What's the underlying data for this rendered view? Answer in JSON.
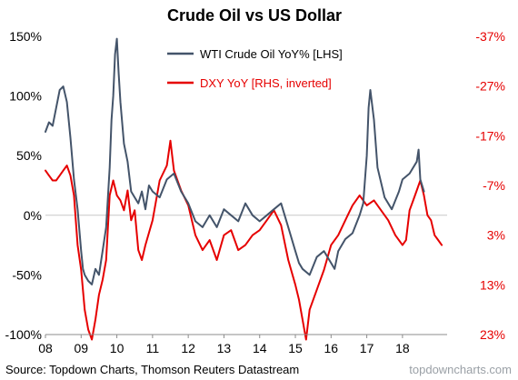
{
  "chart_data": {
    "type": "line",
    "title": "Crude Oil vs US Dollar",
    "x_tick_labels": [
      "08",
      "09",
      "10",
      "11",
      "12",
      "13",
      "14",
      "15",
      "16",
      "17",
      "18"
    ],
    "x_ticks_year": [
      2008,
      2009,
      2010,
      2011,
      2012,
      2013,
      2014,
      2015,
      2016,
      2017,
      2018
    ],
    "xlim": [
      2008.0,
      2019.25
    ],
    "y_left": {
      "ylim": [
        -100,
        150
      ],
      "tick_values": [
        150,
        100,
        50,
        0,
        -50,
        -100
      ],
      "tick_labels": [
        "150%",
        "100%",
        "50%",
        "0%",
        "-50%",
        "-100%"
      ]
    },
    "y_right": {
      "ylim": [
        -37,
        23
      ],
      "inverted": true,
      "tick_values": [
        -37,
        -27,
        -17,
        -7,
        3,
        13,
        23
      ],
      "tick_labels": [
        "-37%",
        "-27%",
        "-17%",
        "-7%",
        "3%",
        "13%",
        "23%"
      ]
    },
    "zero_line": true,
    "legend_position": "top-center",
    "series": [
      {
        "name": "WTI Crude Oil YoY% [LHS]",
        "axis": "left",
        "color": "#44546a",
        "x": [
          2008.0,
          2008.1,
          2008.2,
          2008.3,
          2008.4,
          2008.5,
          2008.6,
          2008.7,
          2008.8,
          2008.9,
          2009.0,
          2009.05,
          2009.1,
          2009.2,
          2009.3,
          2009.4,
          2009.5,
          2009.6,
          2009.7,
          2009.8,
          2009.85,
          2009.9,
          2009.95,
          2010.0,
          2010.05,
          2010.1,
          2010.2,
          2010.3,
          2010.4,
          2010.5,
          2010.6,
          2010.7,
          2010.8,
          2010.9,
          2011.0,
          2011.2,
          2011.4,
          2011.6,
          2011.8,
          2012.0,
          2012.2,
          2012.4,
          2012.6,
          2012.8,
          2013.0,
          2013.2,
          2013.4,
          2013.6,
          2013.8,
          2014.0,
          2014.2,
          2014.4,
          2014.6,
          2014.8,
          2015.0,
          2015.1,
          2015.2,
          2015.4,
          2015.6,
          2015.8,
          2016.0,
          2016.1,
          2016.2,
          2016.4,
          2016.6,
          2016.8,
          2016.9,
          2017.0,
          2017.05,
          2017.1,
          2017.2,
          2017.3,
          2017.5,
          2017.7,
          2017.9,
          2018.0,
          2018.2,
          2018.4,
          2018.45,
          2018.5,
          2018.6
        ],
        "values": [
          70,
          78,
          75,
          90,
          105,
          108,
          95,
          65,
          30,
          5,
          -30,
          -45,
          -50,
          -55,
          -58,
          -45,
          -50,
          -30,
          -10,
          40,
          80,
          100,
          135,
          148,
          120,
          95,
          60,
          45,
          20,
          15,
          10,
          20,
          5,
          25,
          20,
          15,
          30,
          35,
          20,
          10,
          -5,
          -10,
          0,
          -10,
          5,
          0,
          -5,
          10,
          0,
          -5,
          0,
          5,
          10,
          -10,
          -30,
          -40,
          -45,
          -50,
          -35,
          -30,
          -40,
          -45,
          -30,
          -20,
          -15,
          0,
          10,
          50,
          90,
          105,
          80,
          40,
          15,
          5,
          20,
          30,
          35,
          45,
          55,
          30,
          20
        ]
      },
      {
        "name": "DXY YoY [RHS, inverted]",
        "axis": "right",
        "color": "#e60000",
        "x": [
          2008.0,
          2008.1,
          2008.2,
          2008.3,
          2008.4,
          2008.5,
          2008.6,
          2008.7,
          2008.8,
          2008.9,
          2009.0,
          2009.1,
          2009.2,
          2009.3,
          2009.4,
          2009.5,
          2009.6,
          2009.7,
          2009.8,
          2009.9,
          2010.0,
          2010.1,
          2010.2,
          2010.3,
          2010.4,
          2010.5,
          2010.6,
          2010.7,
          2010.8,
          2011.0,
          2011.2,
          2011.4,
          2011.5,
          2011.6,
          2011.8,
          2012.0,
          2012.2,
          2012.4,
          2012.6,
          2012.8,
          2013.0,
          2013.2,
          2013.4,
          2013.6,
          2013.8,
          2014.0,
          2014.2,
          2014.4,
          2014.6,
          2014.8,
          2015.0,
          2015.1,
          2015.2,
          2015.3,
          2015.4,
          2015.6,
          2015.8,
          2016.0,
          2016.2,
          2016.4,
          2016.6,
          2016.8,
          2017.0,
          2017.2,
          2017.4,
          2017.6,
          2017.8,
          2018.0,
          2018.1,
          2018.2,
          2018.3,
          2018.4,
          2018.5,
          2018.6,
          2018.7,
          2018.8,
          2018.9,
          2019.0,
          2019.1
        ],
        "values": [
          -10,
          -9,
          -8,
          -8,
          -9,
          -10,
          -11,
          -9,
          -5,
          5,
          10,
          18,
          22,
          24,
          20,
          15,
          12,
          8,
          -5,
          -8,
          -5,
          -4,
          -2,
          -6,
          0,
          -2,
          6,
          8,
          5,
          0,
          -8,
          -11,
          -16,
          -10,
          -6,
          -3,
          3,
          6,
          4,
          8,
          3,
          2,
          6,
          5,
          3,
          2,
          0,
          -2,
          1,
          8,
          13,
          16,
          20,
          24,
          18,
          14,
          10,
          5,
          3,
          0,
          -3,
          -5,
          -3,
          -4,
          -2,
          0,
          3,
          5,
          4,
          -2,
          -4,
          -6,
          -8,
          -5,
          -1,
          0,
          3,
          4,
          5
        ]
      }
    ],
    "source": "Source: Topdown Charts, Thomson Reuters Datastream",
    "watermark": "topdowncharts.com"
  }
}
